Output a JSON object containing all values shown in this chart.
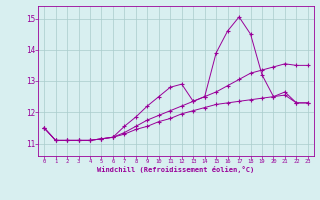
{
  "x": [
    0,
    1,
    2,
    3,
    4,
    5,
    6,
    7,
    8,
    9,
    10,
    11,
    12,
    13,
    14,
    15,
    16,
    17,
    18,
    19,
    20,
    21,
    22,
    23
  ],
  "line1": [
    11.5,
    11.1,
    11.1,
    11.1,
    11.1,
    11.15,
    11.2,
    11.55,
    11.85,
    12.2,
    12.5,
    12.8,
    12.9,
    12.35,
    12.5,
    13.9,
    14.6,
    15.05,
    14.5,
    13.2,
    12.5,
    12.65,
    12.3,
    12.3
  ],
  "line2": [
    11.5,
    11.1,
    11.1,
    11.1,
    11.1,
    11.15,
    11.2,
    11.35,
    11.55,
    11.75,
    11.9,
    12.05,
    12.2,
    12.35,
    12.5,
    12.65,
    12.85,
    13.05,
    13.25,
    13.35,
    13.45,
    13.55,
    13.5,
    13.5
  ],
  "line3": [
    11.5,
    11.1,
    11.1,
    11.1,
    11.1,
    11.15,
    11.2,
    11.3,
    11.45,
    11.55,
    11.7,
    11.8,
    11.95,
    12.05,
    12.15,
    12.25,
    12.3,
    12.35,
    12.4,
    12.45,
    12.5,
    12.55,
    12.3,
    12.3
  ],
  "color": "#990099",
  "bg_color": "#d8eff0",
  "grid_color": "#aacccc",
  "xlabel": "Windchill (Refroidissement éolien,°C)",
  "ylim": [
    10.6,
    15.4
  ],
  "xlim": [
    -0.5,
    23.5
  ],
  "yticks": [
    11,
    12,
    13,
    14,
    15
  ],
  "xticks": [
    0,
    1,
    2,
    3,
    4,
    5,
    6,
    7,
    8,
    9,
    10,
    11,
    12,
    13,
    14,
    15,
    16,
    17,
    18,
    19,
    20,
    21,
    22,
    23
  ]
}
